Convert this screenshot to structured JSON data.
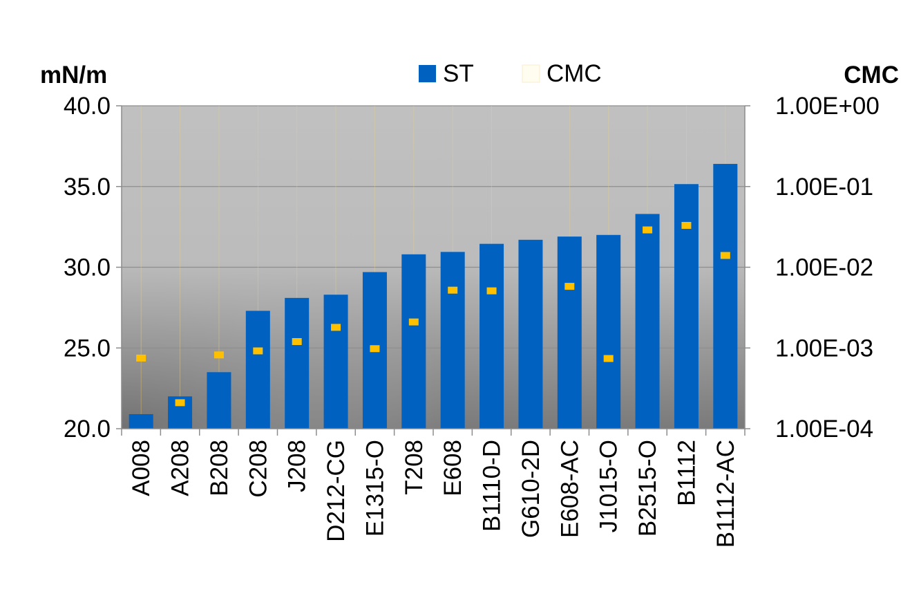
{
  "chart_data": {
    "type": "bar",
    "title": "",
    "left_axis": {
      "title": "mN/m",
      "ylim": [
        20,
        40
      ],
      "ticks": [
        "20.0",
        "25.0",
        "30.0",
        "35.0",
        "40.0"
      ],
      "tick_values": [
        20,
        25,
        30,
        35,
        40
      ]
    },
    "right_axis": {
      "title": "CMC",
      "scale": "log",
      "ylim": [
        0.0001,
        1
      ],
      "ticks": [
        "1.00E-04",
        "1.00E-03",
        "1.00E-02",
        "1.00E-01",
        "1.00E+00"
      ],
      "tick_values": [
        0.0001,
        0.001,
        0.01,
        0.1,
        1
      ]
    },
    "categories": [
      "A008",
      "A208",
      "B208",
      "C208",
      "J208",
      "D212-CG",
      "E1315-O",
      "T208",
      "E608",
      "B1110-D",
      "G610-2D",
      "E608-AC",
      "J1015-O",
      "B2515-O",
      "B1112",
      "B1112-AC"
    ],
    "series": [
      {
        "name": "ST",
        "type": "bar",
        "axis": "left",
        "color": "#0061c1",
        "values": [
          20.9,
          22.0,
          23.5,
          27.3,
          28.1,
          28.3,
          29.7,
          30.8,
          30.95,
          31.45,
          31.7,
          31.9,
          32.0,
          33.3,
          35.15,
          36.4
        ]
      },
      {
        "name": "CMC",
        "type": "scatter",
        "axis": "right",
        "color": "#ffc000",
        "values": [
          0.00075,
          0.00021,
          0.00082,
          0.00092,
          0.0012,
          0.0018,
          0.00098,
          0.0021,
          0.0052,
          0.0051,
          null,
          0.0058,
          0.00074,
          0.029,
          0.033,
          0.014
        ]
      }
    ],
    "legend": {
      "position": "top",
      "entries": [
        "ST",
        "CMC"
      ]
    },
    "plot_background": "gradient-gray",
    "grid": true
  }
}
